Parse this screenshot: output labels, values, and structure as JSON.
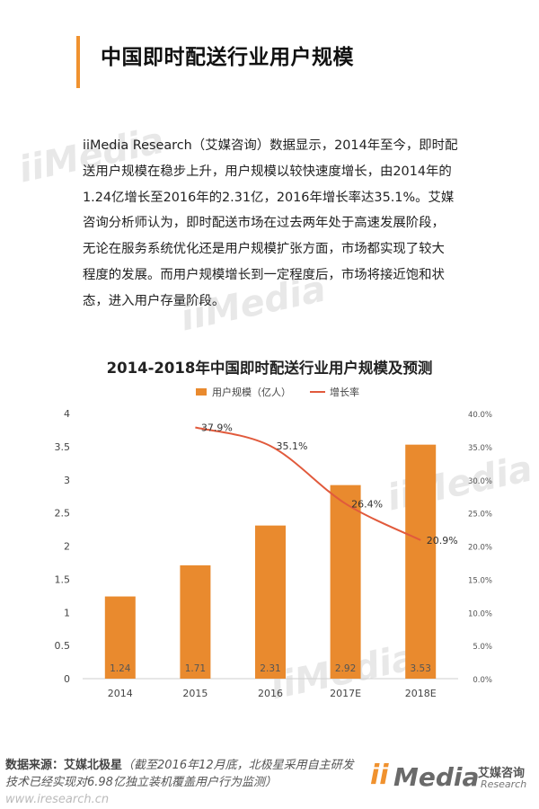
{
  "page": {
    "title": "中国即时配送行业用户规模",
    "paragraph_lines": [
      "iiMedia Research（艾媒咨询）数据显示，2014年至今，即时配",
      "送用户规模在稳步上升，用户规模以较快速度增长，由2014年的",
      "1.24亿增长至2016年的2.31亿，2016年增长率达35.1%。艾媒",
      "咨询分析师认为，即时配送市场在过去两年处于高速发展阶段，",
      "无论在服务系统优化还是用户规模扩张方面，市场都实现了较大",
      "程度的发展。而用户规模增长到一定程度后，市场将接近饱和状",
      "态，进入用户存量阶段。"
    ]
  },
  "watermark": {
    "text": "iiMedia"
  },
  "colors": {
    "accent": "#f0922f",
    "bar": "#e98a2e",
    "line": "#e15a3c"
  },
  "chart_data": {
    "type": "bar",
    "title": "2014-2018年中国即时配送行业用户规模及预测",
    "categories": [
      "2014",
      "2015",
      "2016",
      "2017E",
      "2018E"
    ],
    "series": [
      {
        "name": "用户规模（亿人）",
        "type": "bar",
        "axis": "left",
        "values": [
          1.24,
          1.71,
          2.31,
          2.92,
          3.53
        ]
      },
      {
        "name": "增长率",
        "type": "line",
        "axis": "right",
        "values": [
          null,
          37.9,
          35.1,
          26.4,
          20.9
        ]
      }
    ],
    "value_labels": {
      "bars": [
        "1.24",
        "1.71",
        "2.31",
        "2.92",
        "3.53"
      ],
      "line": [
        "",
        "37.9%",
        "35.1%",
        "26.4%",
        "20.9%"
      ]
    },
    "ylim": [
      0,
      4
    ],
    "yticks": [
      "0",
      "0.5",
      "1",
      "1.5",
      "2",
      "2.5",
      "3",
      "3.5",
      "4"
    ],
    "ylim_right": [
      0,
      40
    ],
    "yticks_right": [
      "0.0%",
      "5.0%",
      "10.0%",
      "15.0%",
      "20.0%",
      "25.0%",
      "30.0%",
      "35.0%",
      "40.0%"
    ],
    "legend_position": "top",
    "grid": false
  },
  "source": {
    "label": "数据来源：",
    "name": "艾媒北极星",
    "note": "（截至2016年12月底，北极星采用自主研发技术已经实现对6.98亿独立装机覆盖用户行为监测）",
    "url": "www.iresearch.cn"
  },
  "logo": {
    "i": "ii",
    "media": "Media",
    "cn": "艾媒咨询",
    "en": "Research"
  }
}
